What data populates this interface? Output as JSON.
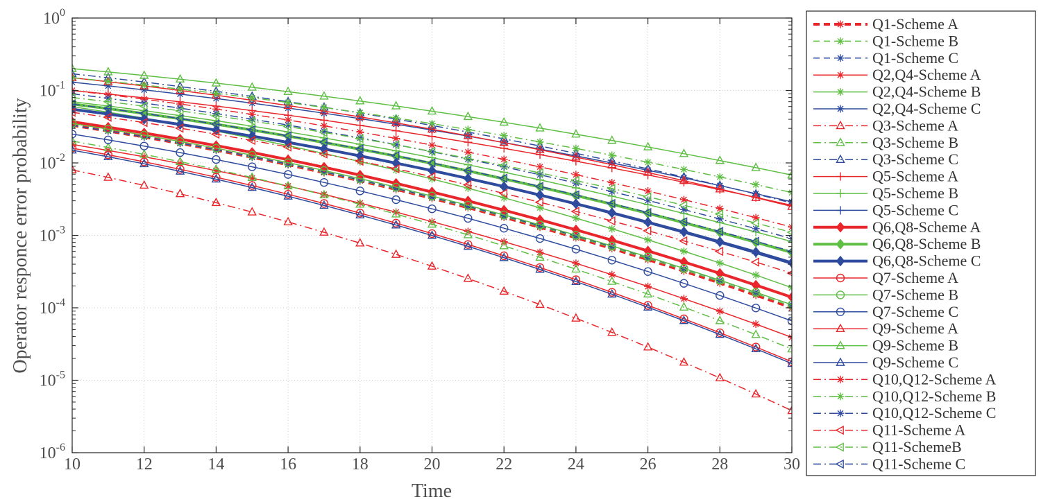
{
  "chart_data": {
    "type": "line",
    "title": "",
    "xlabel": "Time",
    "ylabel": "Operator responce error probability",
    "xlim": [
      10,
      30
    ],
    "ylim": [
      1e-06,
      1
    ],
    "yscale": "log",
    "x_ticks": [
      "10",
      "12",
      "14",
      "16",
      "18",
      "20",
      "22",
      "24",
      "26",
      "28",
      "30"
    ],
    "y_ticks": [
      {
        "base": "10",
        "exp": "0"
      },
      {
        "base": "10",
        "exp": "-1"
      },
      {
        "base": "10",
        "exp": "-2"
      },
      {
        "base": "10",
        "exp": "-3"
      },
      {
        "base": "10",
        "exp": "-4"
      },
      {
        "base": "10",
        "exp": "-5"
      },
      {
        "base": "10",
        "exp": "-6"
      }
    ],
    "legend_position": "outside-right",
    "colors": {
      "A": "#e8262b",
      "B": "#5fbe44",
      "C": "#2e4b9e"
    },
    "x": [
      10,
      11,
      12,
      13,
      14,
      15,
      16,
      17,
      18,
      19,
      20,
      21,
      22,
      23,
      24,
      25,
      26,
      27,
      28,
      29,
      30
    ],
    "series": [
      {
        "name": "Q1-Scheme A",
        "scheme": "A",
        "marker": "star",
        "dash": "dash",
        "width": 4,
        "start": 0.033,
        "end": 0.0001
      },
      {
        "name": "Q1-Scheme B",
        "scheme": "B",
        "marker": "star",
        "dash": "dash",
        "width": 1.5,
        "start": 0.033,
        "end": 0.000105
      },
      {
        "name": "Q1-Scheme C",
        "scheme": "C",
        "marker": "star",
        "dash": "dash",
        "width": 1.5,
        "start": 0.033,
        "end": 0.00011
      },
      {
        "name": "Q2,Q4-Scheme A",
        "scheme": "A",
        "marker": "star",
        "dash": "solid",
        "width": 1.5,
        "start": 0.018,
        "end": 3.9e-05
      },
      {
        "name": "Q2,Q4-Scheme B",
        "scheme": "B",
        "marker": "star",
        "dash": "solid",
        "width": 1.5,
        "start": 0.06,
        "end": 0.00019
      },
      {
        "name": "Q2,Q4-Scheme C",
        "scheme": "C",
        "marker": "star",
        "dash": "solid",
        "width": 1.5,
        "start": 0.13,
        "end": 0.0029
      },
      {
        "name": "Q3-Scheme A",
        "scheme": "A",
        "marker": "triangle-up",
        "dash": "dashdot",
        "width": 1.5,
        "start": 0.008,
        "end": 3.8e-06
      },
      {
        "name": "Q3-Scheme B",
        "scheme": "B",
        "marker": "triangle-up",
        "dash": "dashdot",
        "width": 1.5,
        "start": 0.02,
        "end": 2.7e-05
      },
      {
        "name": "Q3-Scheme C",
        "scheme": "C",
        "marker": "triangle-up",
        "dash": "dashdot",
        "width": 1.5,
        "start": 0.17,
        "end": 0.0028
      },
      {
        "name": "Q5-Scheme A",
        "scheme": "A",
        "marker": "plus",
        "dash": "solid",
        "width": 1.5,
        "start": 0.1,
        "end": 0.0026
      },
      {
        "name": "Q5-Scheme B",
        "scheme": "B",
        "marker": "plus",
        "dash": "solid",
        "width": 1.5,
        "start": 0.07,
        "end": 0.00082
      },
      {
        "name": "Q5-Scheme C",
        "scheme": "C",
        "marker": "plus",
        "dash": "solid",
        "width": 1.5,
        "start": 0.055,
        "end": 0.0004
      },
      {
        "name": "Q6,Q8-Scheme A",
        "scheme": "A",
        "marker": "diamond",
        "dash": "solid",
        "width": 4,
        "start": 0.037,
        "end": 0.00014
      },
      {
        "name": "Q6,Q8-Scheme B",
        "scheme": "B",
        "marker": "diamond",
        "dash": "solid",
        "width": 4,
        "start": 0.065,
        "end": 0.00058
      },
      {
        "name": "Q6,Q8-Scheme C",
        "scheme": "C",
        "marker": "diamond",
        "dash": "solid",
        "width": 4,
        "start": 0.055,
        "end": 0.00042
      },
      {
        "name": "Q7-Scheme A",
        "scheme": "A",
        "marker": "circle",
        "dash": "solid",
        "width": 1.5,
        "start": 0.016,
        "end": 1.8e-05
      },
      {
        "name": "Q7-Scheme B",
        "scheme": "B",
        "marker": "circle",
        "dash": "solid",
        "width": 1.5,
        "start": 0.035,
        "end": 0.00011
      },
      {
        "name": "Q7-Scheme C",
        "scheme": "C",
        "marker": "circle",
        "dash": "solid",
        "width": 1.5,
        "start": 0.025,
        "end": 6.6e-05
      },
      {
        "name": "Q9-Scheme A",
        "scheme": "A",
        "marker": "triangle-up",
        "dash": "solid",
        "width": 1.5,
        "start": 0.15,
        "end": 0.0025
      },
      {
        "name": "Q9-Scheme B",
        "scheme": "B",
        "marker": "triangle-up",
        "dash": "solid",
        "width": 1.5,
        "start": 0.2,
        "end": 0.0068
      },
      {
        "name": "Q9-Scheme C",
        "scheme": "C",
        "marker": "triangle-up",
        "dash": "solid",
        "width": 1.5,
        "start": 0.015,
        "end": 1.7e-05
      },
      {
        "name": "Q10,Q12-Scheme A",
        "scheme": "A",
        "marker": "star",
        "dash": "dashdot",
        "width": 1.5,
        "start": 0.1,
        "end": 0.0013
      },
      {
        "name": "Q10,Q12-Scheme B",
        "scheme": "B",
        "marker": "star",
        "dash": "dashdot",
        "width": 1.5,
        "start": 0.15,
        "end": 0.0039
      },
      {
        "name": "Q10,Q12-Scheme C",
        "scheme": "C",
        "marker": "star",
        "dash": "dashdot",
        "width": 1.5,
        "start": 0.09,
        "end": 0.0009
      },
      {
        "name": "Q11-Scheme A",
        "scheme": "A",
        "marker": "triangle-left",
        "dash": "dashdot",
        "width": 1.5,
        "start": 0.05,
        "end": 0.0003
      },
      {
        "name": "Q11-SchemeB",
        "scheme": "B",
        "marker": "triangle-left",
        "dash": "dashdot",
        "width": 1.5,
        "start": 0.08,
        "end": 0.0011
      },
      {
        "name": "Q11-Scheme C",
        "scheme": "C",
        "marker": "triangle-left",
        "dash": "dashdot",
        "width": 1.5,
        "start": 0.065,
        "end": 0.0006
      }
    ]
  }
}
